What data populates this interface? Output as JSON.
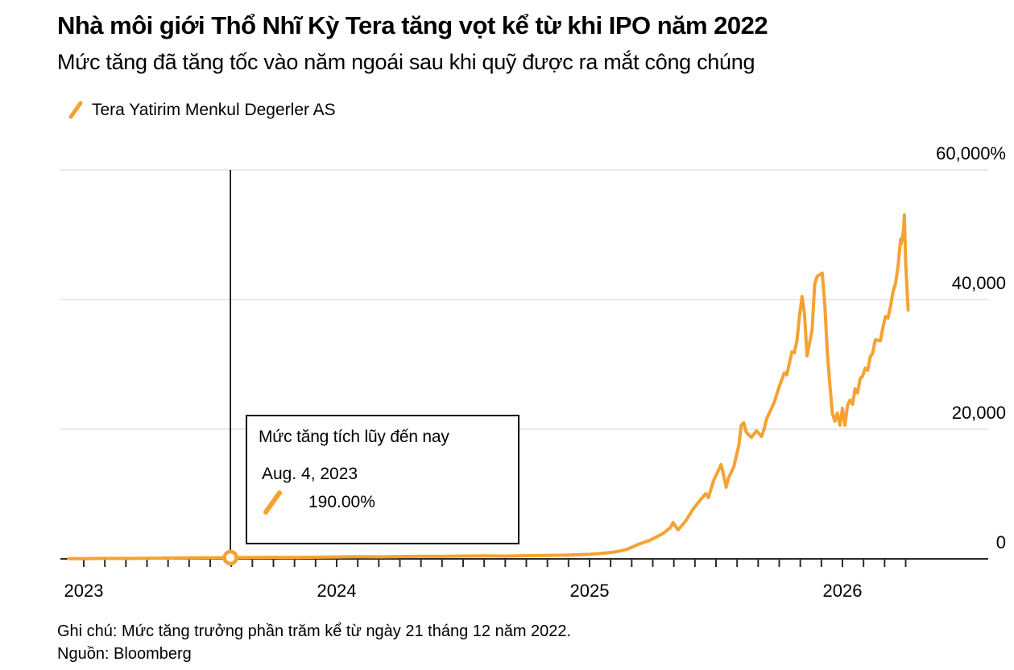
{
  "header": {
    "title": "Nhà môi giới Thổ Nhĩ Kỳ Tera tăng vọt kể từ khi IPO năm 2022",
    "subtitle": "Mức tăng đã tăng tốc vào năm ngoái sau khi quỹ được ra mắt công chúng"
  },
  "legend": {
    "series_label": "Tera Yatirim Menkul Degerler AS"
  },
  "tooltip": {
    "title": "Mức tăng tích lũy đến nay",
    "date": "Aug. 4, 2023",
    "value": "190.00%"
  },
  "footer": {
    "note": "Ghi chú: Mức tăng trưởng phần trăm kể từ ngày 21 tháng 12 năm 2022.",
    "source": "Nguồn: Bloomberg"
  },
  "colors": {
    "accent": "#F5A233",
    "grid": "#DCDCDC",
    "axis": "#2B2B2B",
    "text": "#000000"
  },
  "chart_data": {
    "type": "line",
    "title": "Nhà môi giới Thổ Nhĩ Kỳ Tera tăng vọt kể từ khi IPO năm 2022",
    "x_axis": {
      "year_labels": [
        "2023",
        "2024",
        "2025",
        "2026"
      ],
      "year_values": [
        2023,
        2024,
        2025,
        2026
      ],
      "minor_ticks": "monthly",
      "range": [
        2022.94,
        2026.33
      ]
    },
    "y_axis": {
      "side": "right",
      "unit": "%",
      "ticks": [
        0,
        20000,
        40000,
        60000
      ],
      "tick_labels": [
        "0",
        "20,000",
        "40,000",
        "60,000%"
      ],
      "range": [
        0,
        60000
      ],
      "grid": true
    },
    "annotation": {
      "crosshair_t": 2023.58,
      "marker_date": "Aug. 4, 2023",
      "marker_value": 190
    },
    "series": [
      {
        "name": "Tera Yatirim Menkul Degerler AS",
        "color": "#F5A233",
        "points": [
          [
            2022.94,
            20
          ],
          [
            2023.0,
            40
          ],
          [
            2023.08,
            80
          ],
          [
            2023.17,
            60
          ],
          [
            2023.25,
            100
          ],
          [
            2023.33,
            130
          ],
          [
            2023.42,
            150
          ],
          [
            2023.5,
            170
          ],
          [
            2023.58,
            190
          ],
          [
            2023.67,
            210
          ],
          [
            2023.75,
            230
          ],
          [
            2023.83,
            215
          ],
          [
            2023.92,
            260
          ],
          [
            2024.0,
            300
          ],
          [
            2024.08,
            330
          ],
          [
            2024.17,
            310
          ],
          [
            2024.25,
            360
          ],
          [
            2024.33,
            400
          ],
          [
            2024.42,
            380
          ],
          [
            2024.5,
            430
          ],
          [
            2024.58,
            460
          ],
          [
            2024.67,
            440
          ],
          [
            2024.75,
            500
          ],
          [
            2024.83,
            540
          ],
          [
            2024.92,
            600
          ],
          [
            2025.0,
            700
          ],
          [
            2025.04,
            820
          ],
          [
            2025.08,
            960
          ],
          [
            2025.12,
            1200
          ],
          [
            2025.15,
            1500
          ],
          [
            2025.19,
            2200
          ],
          [
            2025.24,
            2900
          ],
          [
            2025.29,
            3900
          ],
          [
            2025.32,
            4840
          ],
          [
            2025.33,
            5590
          ],
          [
            2025.35,
            4470
          ],
          [
            2025.38,
            5840
          ],
          [
            2025.41,
            7700
          ],
          [
            2025.44,
            9190
          ],
          [
            2025.46,
            10060
          ],
          [
            2025.47,
            9440
          ],
          [
            2025.49,
            12050
          ],
          [
            2025.52,
            14530
          ],
          [
            2025.53,
            12920
          ],
          [
            2025.54,
            11050
          ],
          [
            2025.55,
            12540
          ],
          [
            2025.57,
            14160
          ],
          [
            2025.59,
            17500
          ],
          [
            2025.6,
            20600
          ],
          [
            2025.61,
            20980
          ],
          [
            2025.62,
            19500
          ],
          [
            2025.64,
            18730
          ],
          [
            2025.66,
            19740
          ],
          [
            2025.68,
            18900
          ],
          [
            2025.69,
            20000
          ],
          [
            2025.7,
            21600
          ],
          [
            2025.73,
            24100
          ],
          [
            2025.75,
            26580
          ],
          [
            2025.77,
            28680
          ],
          [
            2025.78,
            28400
          ],
          [
            2025.8,
            31930
          ],
          [
            2025.81,
            31800
          ],
          [
            2025.82,
            33650
          ],
          [
            2025.83,
            37380
          ],
          [
            2025.84,
            40480
          ],
          [
            2025.85,
            37760
          ],
          [
            2025.86,
            31300
          ],
          [
            2025.88,
            35280
          ],
          [
            2025.89,
            42350
          ],
          [
            2025.9,
            43590
          ],
          [
            2025.92,
            44090
          ],
          [
            2025.93,
            39370
          ],
          [
            2025.94,
            31930
          ],
          [
            2025.95,
            26960
          ],
          [
            2025.96,
            22480
          ],
          [
            2025.97,
            21240
          ],
          [
            2025.98,
            22480
          ],
          [
            2025.99,
            20620
          ],
          [
            2026.0,
            23230
          ],
          [
            2026.01,
            20620
          ],
          [
            2026.02,
            23720
          ],
          [
            2026.03,
            24480
          ],
          [
            2026.04,
            23850
          ],
          [
            2026.05,
            26210
          ],
          [
            2026.06,
            25590
          ],
          [
            2026.07,
            27830
          ],
          [
            2026.08,
            28200
          ],
          [
            2026.09,
            29440
          ],
          [
            2026.1,
            29070
          ],
          [
            2026.11,
            31180
          ],
          [
            2026.12,
            31800
          ],
          [
            2026.13,
            33790
          ],
          [
            2026.15,
            33650
          ],
          [
            2026.16,
            35650
          ],
          [
            2026.17,
            37380
          ],
          [
            2026.18,
            37140
          ],
          [
            2026.19,
            39000
          ],
          [
            2026.2,
            41240
          ],
          [
            2026.21,
            42480
          ],
          [
            2026.22,
            45200
          ],
          [
            2026.23,
            49320
          ],
          [
            2026.232,
            48570
          ],
          [
            2026.24,
            50190
          ],
          [
            2026.245,
            53040
          ],
          [
            2026.25,
            45590
          ],
          [
            2026.26,
            38390
          ]
        ]
      }
    ]
  }
}
